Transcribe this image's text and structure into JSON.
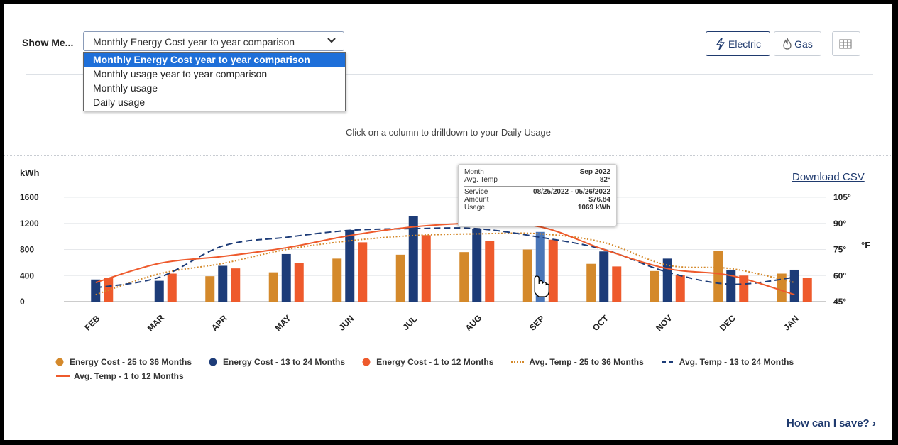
{
  "header": {
    "show_me_label": "Show Me...",
    "selected_view": "Monthly Energy Cost year to year comparison",
    "options": [
      "Monthly Energy Cost year to year comparison",
      "Monthly usage year to year comparison",
      "Monthly usage",
      "Daily usage"
    ],
    "electric_label": "Electric",
    "gas_label": "Gas"
  },
  "hint": "Click on a column to drilldown to your Daily Usage",
  "download_label": "Download CSV",
  "save_link": "How can I save? ›",
  "tooltip": {
    "month_label": "Month",
    "month_value": "Sep 2022",
    "temp_label": "Avg. Temp",
    "temp_value": "82°",
    "service_label": "Service",
    "service_value": "08/25/2022 - 05/26/2022",
    "amount_label": "Amount",
    "amount_value": "$76.84",
    "usage_label": "Usage",
    "usage_value": "1069 kWh"
  },
  "colors": {
    "older": "#d4892b",
    "middle": "#1d3c78",
    "recent": "#ee5a2c",
    "hover": "#4a76b8",
    "brand": "#1f3a6e"
  },
  "chart_data": {
    "type": "bar",
    "ylabel": "kWh",
    "y2label": "°F",
    "ylim": [
      0,
      1600
    ],
    "yticks": [
      "0",
      "400",
      "800",
      "1200",
      "1600"
    ],
    "y2lim": [
      45,
      105
    ],
    "y2ticks": [
      "45°",
      "60°",
      "75°",
      "90°",
      "105°"
    ],
    "categories": [
      "FEB",
      "MAR",
      "APR",
      "MAY",
      "JUN",
      "JUL",
      "AUG",
      "SEP",
      "OCT",
      "NOV",
      "DEC",
      "JAN"
    ],
    "series": [
      {
        "name": "Energy Cost - 25 to 36 Months",
        "values": [
          null,
          null,
          390,
          450,
          660,
          720,
          760,
          800,
          580,
          470,
          780,
          430
        ]
      },
      {
        "name": "Energy Cost - 13 to 24 Months",
        "values": [
          340,
          320,
          550,
          730,
          1100,
          1310,
          1120,
          1069,
          770,
          660,
          490,
          490
        ]
      },
      {
        "name": "Energy Cost - 1 to 12 Months",
        "values": [
          370,
          430,
          510,
          590,
          910,
          1020,
          930,
          950,
          540,
          410,
          400,
          370
        ]
      }
    ],
    "temp_series": [
      {
        "name": "Avg. Temp - 25 to 36 Months",
        "style": "dotted",
        "values": [
          49,
          61,
          67,
          75,
          80,
          83,
          84,
          84,
          79,
          66,
          64,
          56
        ]
      },
      {
        "name": "Avg. Temp - 13 to 24 Months",
        "style": "dashed",
        "values": [
          53,
          59,
          77,
          82,
          86,
          87,
          87,
          82,
          75,
          62,
          55,
          59
        ]
      },
      {
        "name": "Avg. Temp - 1 to 12 Months",
        "style": "solid",
        "values": [
          56,
          67,
          71,
          76,
          83,
          88,
          90,
          88,
          75,
          64,
          60,
          49
        ]
      }
    ],
    "highlighted_category": "SEP",
    "highlighted_series": 1,
    "grid": true,
    "legend_position": "bottom"
  }
}
